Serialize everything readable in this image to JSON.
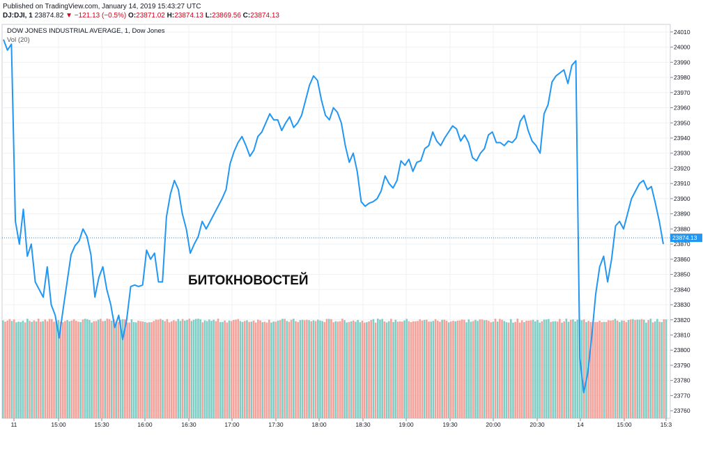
{
  "header": {
    "published": "Published on TradingView.com, January 14, 2019 15:43:27 UTC",
    "symbol": "DJ:DJI, 1",
    "last": "23874.82",
    "change": "−121.13 (−0.5%)",
    "o_label": "O:",
    "o_value": "23871.02",
    "h_label": "H:",
    "h_value": "23874.13",
    "l_label": "L:",
    "l_value": "23869.56",
    "c_label": "C:",
    "c_value": "23874.13"
  },
  "legend": {
    "title": "DOW JONES INDUSTRIAL AVERAGE, 1, Dow Jones",
    "vol": "Vol (20)"
  },
  "watermark": "БИТОКНОВОСТЕЙ",
  "colors": {
    "line": "#2196f3",
    "vol_up": "#7fcdc4",
    "vol_down": "#f4a19a",
    "last_badge": "#2196f3"
  },
  "chart_data": {
    "type": "line",
    "title": "DOW JONES INDUSTRIAL AVERAGE, 1, Dow Jones",
    "ylim": [
      23755,
      24015
    ],
    "last_value": "23874.13",
    "y_ticks": [
      24010,
      24000,
      23990,
      23980,
      23970,
      23960,
      23950,
      23940,
      23930,
      23920,
      23910,
      23900,
      23890,
      23880,
      23870,
      23860,
      23850,
      23840,
      23830,
      23820,
      23810,
      23800,
      23790,
      23780,
      23770,
      23760
    ],
    "x_ticks": [
      "11",
      "15:00",
      "15:30",
      "16:00",
      "16:30",
      "17:00",
      "17:30",
      "18:00",
      "18:30",
      "19:00",
      "19:30",
      "20:00",
      "20:30",
      "14",
      "15:00",
      "15:3"
    ],
    "series": [
      {
        "values": [
          24005,
          23998,
          24002,
          23885,
          23870,
          23893,
          23862,
          23870,
          23845,
          23840,
          23835,
          23855,
          23830,
          23823,
          23808,
          23827,
          23845,
          23863,
          23869,
          23872,
          23880,
          23875,
          23863,
          23835,
          23848,
          23855,
          23840,
          23830,
          23815,
          23823,
          23807,
          23820,
          23842,
          23843,
          23842,
          23843,
          23866,
          23860,
          23864,
          23845,
          23845,
          23888,
          23903,
          23912,
          23906,
          23890,
          23880,
          23864,
          23870,
          23875,
          23885,
          23880,
          23885,
          23890,
          23895,
          23900,
          23906,
          23923,
          23931,
          23937,
          23941,
          23935,
          23928,
          23932,
          23941,
          23944,
          23950,
          23956,
          23952,
          23952,
          23945,
          23950,
          23954,
          23947,
          23950,
          23955,
          23965,
          23975,
          23981,
          23978,
          23965,
          23955,
          23952,
          23960,
          23957,
          23950,
          23935,
          23924,
          23930,
          23918,
          23898,
          23895,
          23897,
          23898,
          23900,
          23905,
          23915,
          23910,
          23907,
          23912,
          23925,
          23922,
          23926,
          23918,
          23924,
          23925,
          23933,
          23935,
          23944,
          23938,
          23935,
          23940,
          23944,
          23948,
          23946,
          23938,
          23942,
          23937,
          23927,
          23925,
          23930,
          23933,
          23942,
          23944,
          23937,
          23937,
          23935,
          23938,
          23937,
          23940,
          23951,
          23955,
          23945,
          23938,
          23935,
          23930,
          23956,
          23962,
          23977,
          23981,
          23983,
          23985,
          23976,
          23988,
          23991,
          23795,
          23772,
          23785,
          23809,
          23837,
          23855,
          23862,
          23845,
          23860,
          23882,
          23885,
          23880,
          23890,
          23900,
          23905,
          23910,
          23912,
          23906,
          23908,
          23897,
          23885,
          23870
        ]
      }
    ],
    "volume": {
      "bar_count": 300,
      "up_color": "#7fcdc4",
      "down_color": "#f4a19a"
    }
  }
}
